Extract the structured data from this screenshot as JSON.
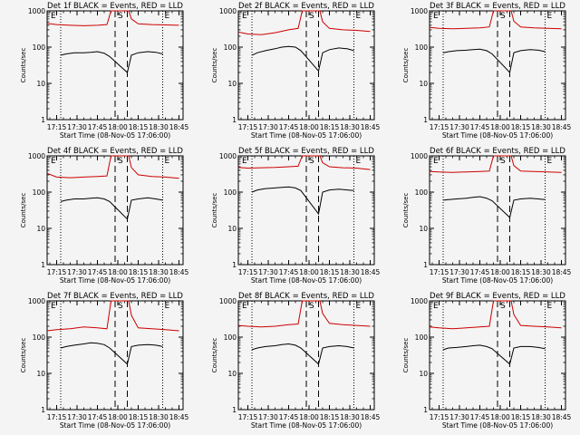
{
  "background": "#f4f4f4",
  "series_colors": {
    "events": "#000000",
    "lld": "#cc0000"
  },
  "chart_data": [
    {
      "type": "line",
      "title": "Det 1f BLACK = Events, RED = LLD",
      "xlabel": "Start Time (08-Nov-05 17:06:00)",
      "ylabel": "Counts/sec",
      "y_scale": "log",
      "ylim": [
        1,
        1000
      ],
      "y_ticks": [
        "1",
        "10",
        "100",
        "1000"
      ],
      "xlim": [
        "17:08",
        "18:48"
      ],
      "x_ticks": [
        "17:15",
        "17:30",
        "17:45",
        "18:00",
        "18:15",
        "18:30",
        "18:45"
      ],
      "annotations": [
        "E",
        "S",
        "E"
      ],
      "dotted_lines_at": [
        "17:18",
        "18:33"
      ],
      "dashed_lines_at": [
        "17:58",
        "18:07"
      ],
      "series": [
        {
          "key": "lld",
          "x": [
            "17:08",
            "17:15",
            "17:25",
            "17:35",
            "17:45",
            "17:52",
            "17:55",
            "17:57",
            "18:08",
            "18:10",
            "18:15",
            "18:25",
            "18:35",
            "18:45"
          ],
          "values": [
            450,
            420,
            400,
            390,
            400,
            420,
            1000,
            1000,
            1000,
            600,
            440,
            420,
            410,
            400
          ]
        },
        {
          "key": "events",
          "x": [
            "17:18",
            "17:22",
            "17:28",
            "17:35",
            "17:40",
            "17:45",
            "17:50",
            "17:54",
            "18:07",
            "18:10",
            "18:15",
            "18:22",
            "18:28",
            "18:33"
          ],
          "values": [
            60,
            65,
            70,
            70,
            72,
            75,
            68,
            55,
            20,
            60,
            70,
            75,
            72,
            65
          ]
        }
      ]
    },
    {
      "type": "line",
      "title": "Det 2f BLACK = Events, RED = LLD",
      "xlabel": "Start Time (08-Nov-05 17:06:00)",
      "ylabel": "Counts/sec",
      "y_scale": "log",
      "ylim": [
        1,
        1000
      ],
      "y_ticks": [
        "1",
        "10",
        "100",
        "1000"
      ],
      "xlim": [
        "17:08",
        "18:48"
      ],
      "x_ticks": [
        "17:15",
        "17:30",
        "17:45",
        "18:00",
        "18:15",
        "18:30",
        "18:45"
      ],
      "annotations": [
        "E",
        "S",
        "E"
      ],
      "dotted_lines_at": [
        "17:18",
        "18:33"
      ],
      "dashed_lines_at": [
        "17:58",
        "18:07"
      ],
      "series": [
        {
          "key": "lld",
          "x": [
            "17:08",
            "17:15",
            "17:25",
            "17:35",
            "17:45",
            "17:52",
            "17:55",
            "17:57",
            "18:08",
            "18:10",
            "18:15",
            "18:25",
            "18:35",
            "18:45"
          ],
          "values": [
            260,
            230,
            220,
            250,
            300,
            330,
            1000,
            1000,
            1000,
            500,
            330,
            300,
            290,
            270
          ]
        },
        {
          "key": "events",
          "x": [
            "17:18",
            "17:22",
            "17:28",
            "17:35",
            "17:40",
            "17:45",
            "17:50",
            "17:54",
            "18:07",
            "18:10",
            "18:15",
            "18:22",
            "18:28",
            "18:33"
          ],
          "values": [
            60,
            70,
            80,
            90,
            100,
            105,
            100,
            80,
            22,
            70,
            85,
            95,
            90,
            80
          ]
        }
      ]
    },
    {
      "type": "line",
      "title": "Det 3f BLACK = Events, RED = LLD",
      "xlabel": "Start Time (08-Nov-05 17:06:00)",
      "ylabel": "Counts/sec",
      "y_scale": "log",
      "ylim": [
        1,
        1000
      ],
      "y_ticks": [
        "1",
        "10",
        "100",
        "1000"
      ],
      "xlim": [
        "17:08",
        "18:48"
      ],
      "x_ticks": [
        "17:15",
        "17:30",
        "17:45",
        "18:00",
        "18:15",
        "18:30",
        "18:45"
      ],
      "annotations": [
        "E",
        "S",
        "E"
      ],
      "dotted_lines_at": [
        "17:18",
        "18:33"
      ],
      "dashed_lines_at": [
        "17:58",
        "18:07"
      ],
      "series": [
        {
          "key": "lld",
          "x": [
            "17:08",
            "17:15",
            "17:25",
            "17:35",
            "17:45",
            "17:52",
            "17:55",
            "17:57",
            "18:08",
            "18:10",
            "18:15",
            "18:25",
            "18:35",
            "18:45"
          ],
          "values": [
            350,
            330,
            320,
            330,
            340,
            360,
            1000,
            1000,
            1000,
            520,
            360,
            340,
            330,
            320
          ]
        },
        {
          "key": "events",
          "x": [
            "17:18",
            "17:22",
            "17:28",
            "17:35",
            "17:40",
            "17:45",
            "17:50",
            "17:54",
            "18:07",
            "18:10",
            "18:15",
            "18:22",
            "18:28",
            "18:33"
          ],
          "values": [
            70,
            75,
            80,
            82,
            85,
            88,
            80,
            65,
            20,
            70,
            80,
            85,
            82,
            75
          ]
        }
      ]
    },
    {
      "type": "line",
      "title": "Det 4f BLACK = Events, RED = LLD",
      "xlabel": "Start Time (08-Nov-05 17:06:00)",
      "ylabel": "Counts/sec",
      "y_scale": "log",
      "ylim": [
        1,
        1000
      ],
      "y_ticks": [
        "1",
        "10",
        "100",
        "1000"
      ],
      "xlim": [
        "17:08",
        "18:48"
      ],
      "x_ticks": [
        "17:15",
        "17:30",
        "17:45",
        "18:00",
        "18:15",
        "18:30",
        "18:45"
      ],
      "annotations": [
        "E",
        "S",
        "E"
      ],
      "dotted_lines_at": [
        "17:18",
        "18:33"
      ],
      "dashed_lines_at": [
        "17:58",
        "18:07"
      ],
      "series": [
        {
          "key": "lld",
          "x": [
            "17:08",
            "17:15",
            "17:25",
            "17:35",
            "17:45",
            "17:52",
            "17:55",
            "17:57",
            "18:08",
            "18:10",
            "18:15",
            "18:25",
            "18:35",
            "18:45"
          ],
          "values": [
            330,
            260,
            250,
            260,
            270,
            280,
            1000,
            1000,
            1000,
            480,
            300,
            270,
            260,
            240
          ]
        },
        {
          "key": "events",
          "x": [
            "17:18",
            "17:22",
            "17:28",
            "17:35",
            "17:40",
            "17:45",
            "17:50",
            "17:54",
            "18:07",
            "18:10",
            "18:15",
            "18:22",
            "18:28",
            "18:33"
          ],
          "values": [
            55,
            60,
            65,
            65,
            68,
            70,
            65,
            55,
            18,
            60,
            65,
            70,
            65,
            60
          ]
        }
      ]
    },
    {
      "type": "line",
      "title": "Det 5f BLACK = Events, RED = LLD",
      "xlabel": "Start Time (08-Nov-05 17:06:00)",
      "ylabel": "Counts/sec",
      "y_scale": "log",
      "ylim": [
        1,
        1000
      ],
      "y_ticks": [
        "1",
        "10",
        "100",
        "1000"
      ],
      "xlim": [
        "17:08",
        "18:48"
      ],
      "x_ticks": [
        "17:15",
        "17:30",
        "17:45",
        "18:00",
        "18:15",
        "18:30",
        "18:45"
      ],
      "annotations": [
        "E",
        "S",
        "E"
      ],
      "dotted_lines_at": [
        "17:18",
        "18:33"
      ],
      "dashed_lines_at": [
        "17:58",
        "18:07"
      ],
      "series": [
        {
          "key": "lld",
          "x": [
            "17:08",
            "17:15",
            "17:25",
            "17:35",
            "17:45",
            "17:52",
            "17:55",
            "17:57",
            "18:08",
            "18:10",
            "18:15",
            "18:25",
            "18:35",
            "18:45"
          ],
          "values": [
            480,
            460,
            470,
            480,
            500,
            520,
            1000,
            1000,
            1000,
            650,
            500,
            470,
            460,
            420
          ]
        },
        {
          "key": "events",
          "x": [
            "17:18",
            "17:22",
            "17:28",
            "17:35",
            "17:40",
            "17:45",
            "17:50",
            "17:54",
            "18:07",
            "18:10",
            "18:15",
            "18:22",
            "18:28",
            "18:33"
          ],
          "values": [
            100,
            115,
            125,
            130,
            135,
            140,
            130,
            110,
            25,
            100,
            115,
            120,
            115,
            110
          ]
        }
      ]
    },
    {
      "type": "line",
      "title": "Det 6f BLACK = Events, RED = LLD",
      "xlabel": "Start Time (08-Nov-05 17:06:00)",
      "ylabel": "Counts/sec",
      "y_scale": "log",
      "ylim": [
        1,
        1000
      ],
      "y_ticks": [
        "1",
        "10",
        "100",
        "1000"
      ],
      "xlim": [
        "17:08",
        "18:48"
      ],
      "x_ticks": [
        "17:15",
        "17:30",
        "17:45",
        "18:00",
        "18:15",
        "18:30",
        "18:45"
      ],
      "annotations": [
        "E",
        "S",
        "E"
      ],
      "dotted_lines_at": [
        "17:18",
        "18:33"
      ],
      "dashed_lines_at": [
        "17:58",
        "18:07"
      ],
      "series": [
        {
          "key": "lld",
          "x": [
            "17:08",
            "17:15",
            "17:25",
            "17:35",
            "17:45",
            "17:52",
            "17:55",
            "17:57",
            "18:08",
            "18:10",
            "18:15",
            "18:25",
            "18:35",
            "18:45"
          ],
          "values": [
            370,
            360,
            350,
            360,
            370,
            380,
            1000,
            1000,
            1000,
            540,
            380,
            370,
            360,
            350
          ]
        },
        {
          "key": "events",
          "x": [
            "17:18",
            "17:22",
            "17:28",
            "17:35",
            "17:40",
            "17:45",
            "17:50",
            "17:54",
            "18:07",
            "18:10",
            "18:15",
            "18:22",
            "18:28",
            "18:33"
          ],
          "values": [
            60,
            62,
            65,
            68,
            72,
            75,
            68,
            58,
            20,
            60,
            65,
            68,
            65,
            62
          ]
        }
      ]
    },
    {
      "type": "line",
      "title": "Det 7f BLACK = Events, RED = LLD",
      "xlabel": "Start Time (08-Nov-05 17:06:00)",
      "ylabel": "Counts/sec",
      "y_scale": "log",
      "ylim": [
        1,
        1000
      ],
      "y_ticks": [
        "1",
        "10",
        "100",
        "1000"
      ],
      "xlim": [
        "17:08",
        "18:48"
      ],
      "x_ticks": [
        "17:15",
        "17:30",
        "17:45",
        "18:00",
        "18:15",
        "18:30",
        "18:45"
      ],
      "annotations": [
        "E",
        "S",
        "E"
      ],
      "dotted_lines_at": [
        "17:18",
        "18:33"
      ],
      "dashed_lines_at": [
        "17:58",
        "18:07"
      ],
      "series": [
        {
          "key": "lld",
          "x": [
            "17:08",
            "17:15",
            "17:25",
            "17:35",
            "17:45",
            "17:52",
            "17:55",
            "17:57",
            "18:08",
            "18:10",
            "18:15",
            "18:25",
            "18:35",
            "18:45"
          ],
          "values": [
            150,
            160,
            170,
            190,
            180,
            170,
            1000,
            1000,
            1000,
            400,
            180,
            170,
            160,
            150
          ]
        },
        {
          "key": "events",
          "x": [
            "17:18",
            "17:22",
            "17:28",
            "17:35",
            "17:40",
            "17:45",
            "17:50",
            "17:54",
            "18:07",
            "18:10",
            "18:15",
            "18:22",
            "18:28",
            "18:33"
          ],
          "values": [
            50,
            55,
            60,
            65,
            70,
            68,
            62,
            50,
            18,
            55,
            60,
            62,
            60,
            55
          ]
        }
      ]
    },
    {
      "type": "line",
      "title": "Det 8f BLACK = Events, RED = LLD",
      "xlabel": "Start Time (08-Nov-05 17:06:00)",
      "ylabel": "Counts/sec",
      "y_scale": "log",
      "ylim": [
        1,
        1000
      ],
      "y_ticks": [
        "1",
        "10",
        "100",
        "1000"
      ],
      "xlim": [
        "17:08",
        "18:48"
      ],
      "x_ticks": [
        "17:15",
        "17:30",
        "17:45",
        "18:00",
        "18:15",
        "18:30",
        "18:45"
      ],
      "annotations": [
        "E",
        "S",
        "E"
      ],
      "dotted_lines_at": [
        "17:18",
        "18:33"
      ],
      "dashed_lines_at": [
        "17:58",
        "18:07"
      ],
      "series": [
        {
          "key": "lld",
          "x": [
            "17:08",
            "17:15",
            "17:25",
            "17:35",
            "17:45",
            "17:52",
            "17:55",
            "17:57",
            "18:08",
            "18:10",
            "18:15",
            "18:25",
            "18:35",
            "18:45"
          ],
          "values": [
            210,
            200,
            190,
            200,
            220,
            230,
            1000,
            1000,
            1000,
            450,
            240,
            220,
            210,
            200
          ]
        },
        {
          "key": "events",
          "x": [
            "17:18",
            "17:22",
            "17:28",
            "17:35",
            "17:40",
            "17:45",
            "17:50",
            "17:54",
            "18:07",
            "18:10",
            "18:15",
            "18:22",
            "18:28",
            "18:33"
          ],
          "values": [
            45,
            50,
            55,
            58,
            62,
            65,
            60,
            50,
            18,
            50,
            55,
            58,
            55,
            50
          ]
        }
      ]
    },
    {
      "type": "line",
      "title": "Det 9f BLACK = Events, RED = LLD",
      "xlabel": "Start Time (08-Nov-05 17:06:00)",
      "ylabel": "Counts/sec",
      "y_scale": "log",
      "ylim": [
        1,
        1000
      ],
      "y_ticks": [
        "1",
        "10",
        "100",
        "1000"
      ],
      "xlim": [
        "17:08",
        "18:48"
      ],
      "x_ticks": [
        "17:15",
        "17:30",
        "17:45",
        "18:00",
        "18:15",
        "18:30",
        "18:45"
      ],
      "annotations": [
        "E",
        "S",
        "E"
      ],
      "dotted_lines_at": [
        "17:18",
        "18:33"
      ],
      "dashed_lines_at": [
        "17:58",
        "18:07"
      ],
      "series": [
        {
          "key": "lld",
          "x": [
            "17:08",
            "17:15",
            "17:25",
            "17:35",
            "17:45",
            "17:52",
            "17:55",
            "17:57",
            "18:08",
            "18:10",
            "18:15",
            "18:25",
            "18:35",
            "18:45"
          ],
          "values": [
            190,
            180,
            170,
            180,
            190,
            200,
            1000,
            1000,
            1000,
            420,
            210,
            200,
            190,
            180
          ]
        },
        {
          "key": "events",
          "x": [
            "17:18",
            "17:22",
            "17:28",
            "17:35",
            "17:40",
            "17:45",
            "17:50",
            "17:54",
            "18:07",
            "18:10",
            "18:15",
            "18:22",
            "18:28",
            "18:33"
          ],
          "values": [
            45,
            50,
            52,
            55,
            58,
            60,
            55,
            48,
            18,
            50,
            55,
            55,
            52,
            48
          ]
        }
      ]
    }
  ]
}
